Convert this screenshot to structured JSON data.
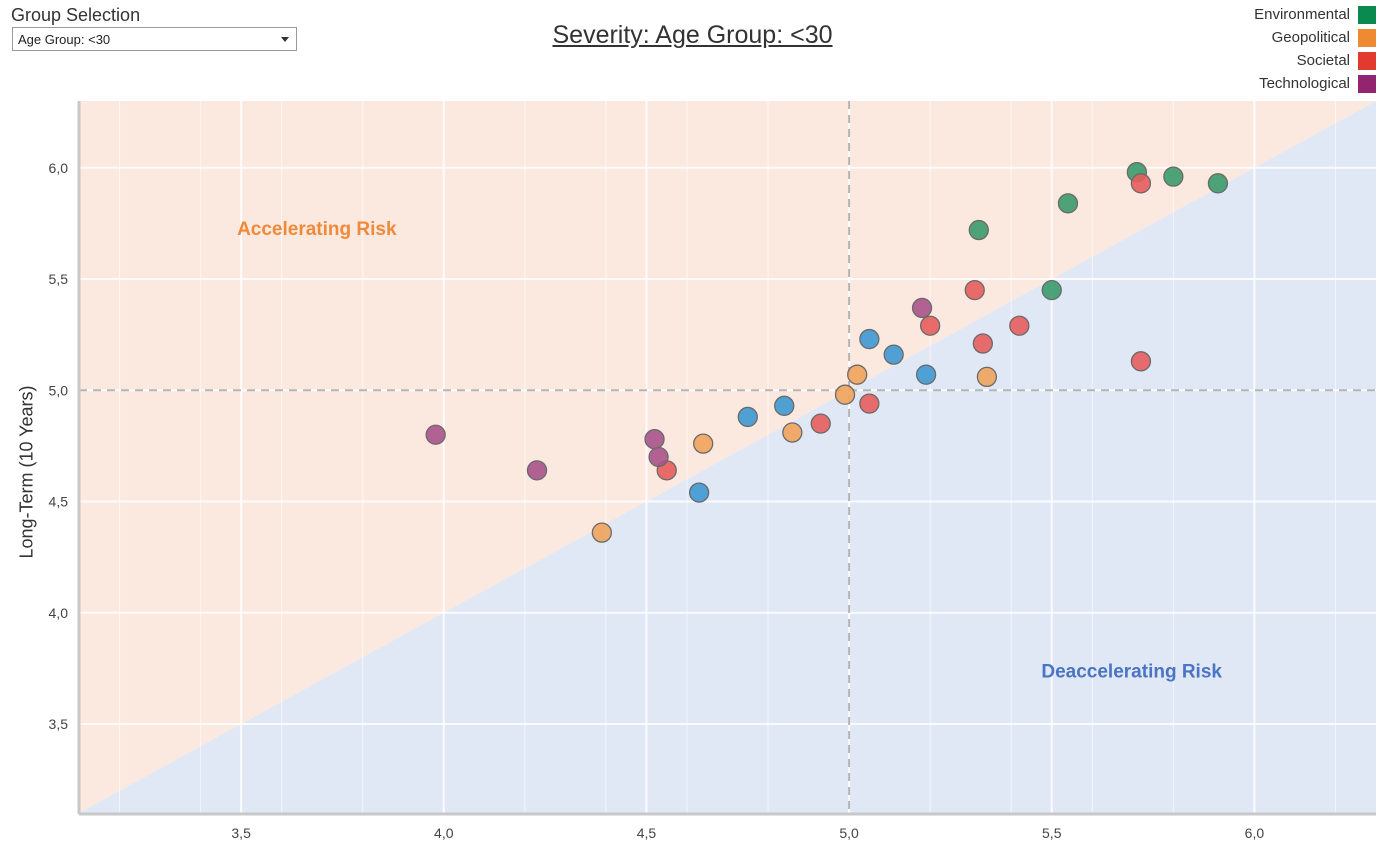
{
  "group_selection": {
    "label": "Group Selection",
    "selected": "Age Group: <30"
  },
  "legend": [
    {
      "name": "Environmental",
      "color": "#0a8a4e"
    },
    {
      "name": "Geopolitical",
      "color": "#ee8a32"
    },
    {
      "name": "Societal",
      "color": "#e33a2f"
    },
    {
      "name": "Technological",
      "color": "#922470"
    }
  ],
  "colors": {
    "Environmental": "#3a9a6a",
    "Geopolitical": "#f0a35c",
    "Societal": "#e65d5d",
    "Technological": "#a8538b",
    "Uncategorized": "#3e98d2",
    "accelerating_fill": "#fbe9e0",
    "deaccelerating_fill": "#e0e7f5",
    "accelerating_text": "#ee8a3a",
    "deaccelerating_text": "#4a74c4"
  },
  "chart_data": {
    "type": "scatter",
    "title": "Severity: Age Group: <30",
    "xlabel": "",
    "ylabel": "Long-Term (10 Years)",
    "xlim": [
      3.1,
      6.3
    ],
    "ylim": [
      3.1,
      6.3
    ],
    "xticks": [
      "3,5",
      "4,0",
      "4,5",
      "5,0",
      "5,5",
      "6,0"
    ],
    "yticks": [
      "3,5",
      "4,0",
      "4,5",
      "5,0",
      "5,5",
      "6,0"
    ],
    "xtick_values": [
      3.5,
      4.0,
      4.5,
      5.0,
      5.5,
      6.0
    ],
    "ytick_values": [
      3.5,
      4.0,
      4.5,
      5.0,
      5.5,
      6.0
    ],
    "reference_lines": {
      "x": 5.0,
      "y": 5.0
    },
    "diagonal": "y = x",
    "annotations": {
      "accelerating": "Accelerating Risk",
      "deaccelerating": "Deaccelerating Risk"
    },
    "grid": true,
    "legend_position": "top-right",
    "points": [
      {
        "category": "Environmental",
        "x": 5.32,
        "y": 5.72
      },
      {
        "category": "Environmental",
        "x": 5.54,
        "y": 5.84
      },
      {
        "category": "Environmental",
        "x": 5.71,
        "y": 5.98
      },
      {
        "category": "Environmental",
        "x": 5.8,
        "y": 5.96
      },
      {
        "category": "Environmental",
        "x": 5.91,
        "y": 5.93
      },
      {
        "category": "Environmental",
        "x": 5.5,
        "y": 5.45
      },
      {
        "category": "Societal",
        "x": 5.72,
        "y": 5.93
      },
      {
        "category": "Societal",
        "x": 5.31,
        "y": 5.45
      },
      {
        "category": "Societal",
        "x": 5.2,
        "y": 5.29
      },
      {
        "category": "Societal",
        "x": 5.42,
        "y": 5.29
      },
      {
        "category": "Societal",
        "x": 5.33,
        "y": 5.21
      },
      {
        "category": "Societal",
        "x": 5.72,
        "y": 5.13
      },
      {
        "category": "Societal",
        "x": 5.05,
        "y": 4.94
      },
      {
        "category": "Societal",
        "x": 4.93,
        "y": 4.85
      },
      {
        "category": "Societal",
        "x": 4.55,
        "y": 4.64
      },
      {
        "category": "Technological",
        "x": 5.18,
        "y": 5.37
      },
      {
        "category": "Technological",
        "x": 3.98,
        "y": 4.8
      },
      {
        "category": "Technological",
        "x": 4.23,
        "y": 4.64
      },
      {
        "category": "Technological",
        "x": 4.52,
        "y": 4.78
      },
      {
        "category": "Technological",
        "x": 4.53,
        "y": 4.7
      },
      {
        "category": "Geopolitical",
        "x": 5.02,
        "y": 5.07
      },
      {
        "category": "Geopolitical",
        "x": 4.99,
        "y": 4.98
      },
      {
        "category": "Geopolitical",
        "x": 5.34,
        "y": 5.06
      },
      {
        "category": "Geopolitical",
        "x": 4.64,
        "y": 4.76
      },
      {
        "category": "Geopolitical",
        "x": 4.86,
        "y": 4.81
      },
      {
        "category": "Geopolitical",
        "x": 4.39,
        "y": 4.36
      },
      {
        "category": "Uncategorized",
        "x": 5.05,
        "y": 5.23
      },
      {
        "category": "Uncategorized",
        "x": 5.11,
        "y": 5.16
      },
      {
        "category": "Uncategorized",
        "x": 5.19,
        "y": 5.07
      },
      {
        "category": "Uncategorized",
        "x": 4.75,
        "y": 4.88
      },
      {
        "category": "Uncategorized",
        "x": 4.84,
        "y": 4.93
      },
      {
        "category": "Uncategorized",
        "x": 4.63,
        "y": 4.54
      }
    ]
  }
}
